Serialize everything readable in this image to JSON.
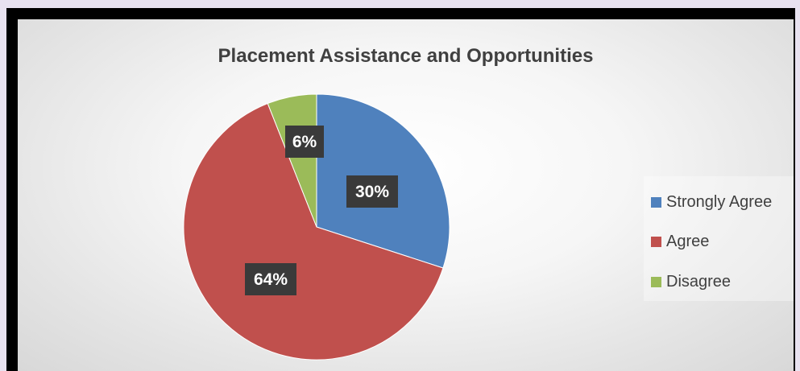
{
  "chart_data": {
    "type": "pie",
    "title": "Placement Assistance and Opportunities",
    "slices": [
      {
        "name": "Strongly Agree",
        "value": 30,
        "label": "30%",
        "color": "#4f81bd"
      },
      {
        "name": "Agree",
        "value": 64,
        "label": "64%",
        "color": "#c0504d"
      },
      {
        "name": "Disagree",
        "value": 6,
        "label": "6%",
        "color": "#9bbb59"
      }
    ],
    "legend_placement": "right"
  }
}
